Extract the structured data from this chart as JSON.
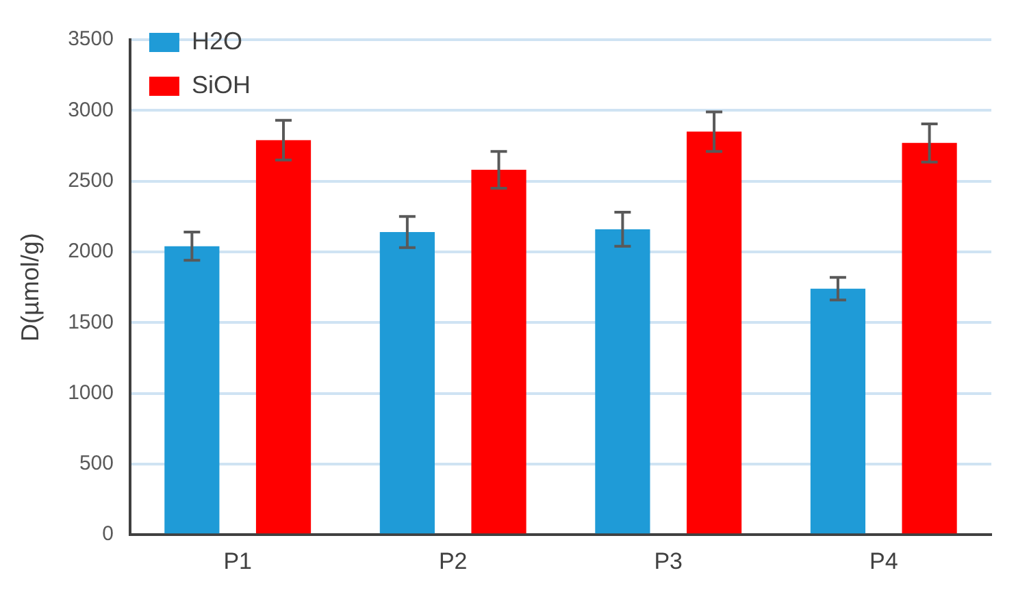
{
  "chart_data": {
    "type": "bar",
    "ylabel": "D(µmol/g)",
    "categories": [
      "P1",
      "P2",
      "P3",
      "P4"
    ],
    "series": [
      {
        "name": "H2O",
        "color": "#1f9bd7",
        "values": [
          2040,
          2140,
          2160,
          1740
        ],
        "errors": [
          100,
          110,
          120,
          80
        ]
      },
      {
        "name": "SiOH",
        "color": "#ff0000",
        "values": [
          2790,
          2580,
          2850,
          2770
        ],
        "errors": [
          140,
          130,
          140,
          135
        ]
      }
    ],
    "ylim": [
      0,
      3500
    ],
    "yticks": [
      0,
      500,
      1000,
      1500,
      2000,
      2500,
      3000,
      3500
    ],
    "grid": "y",
    "legend": "top left"
  }
}
